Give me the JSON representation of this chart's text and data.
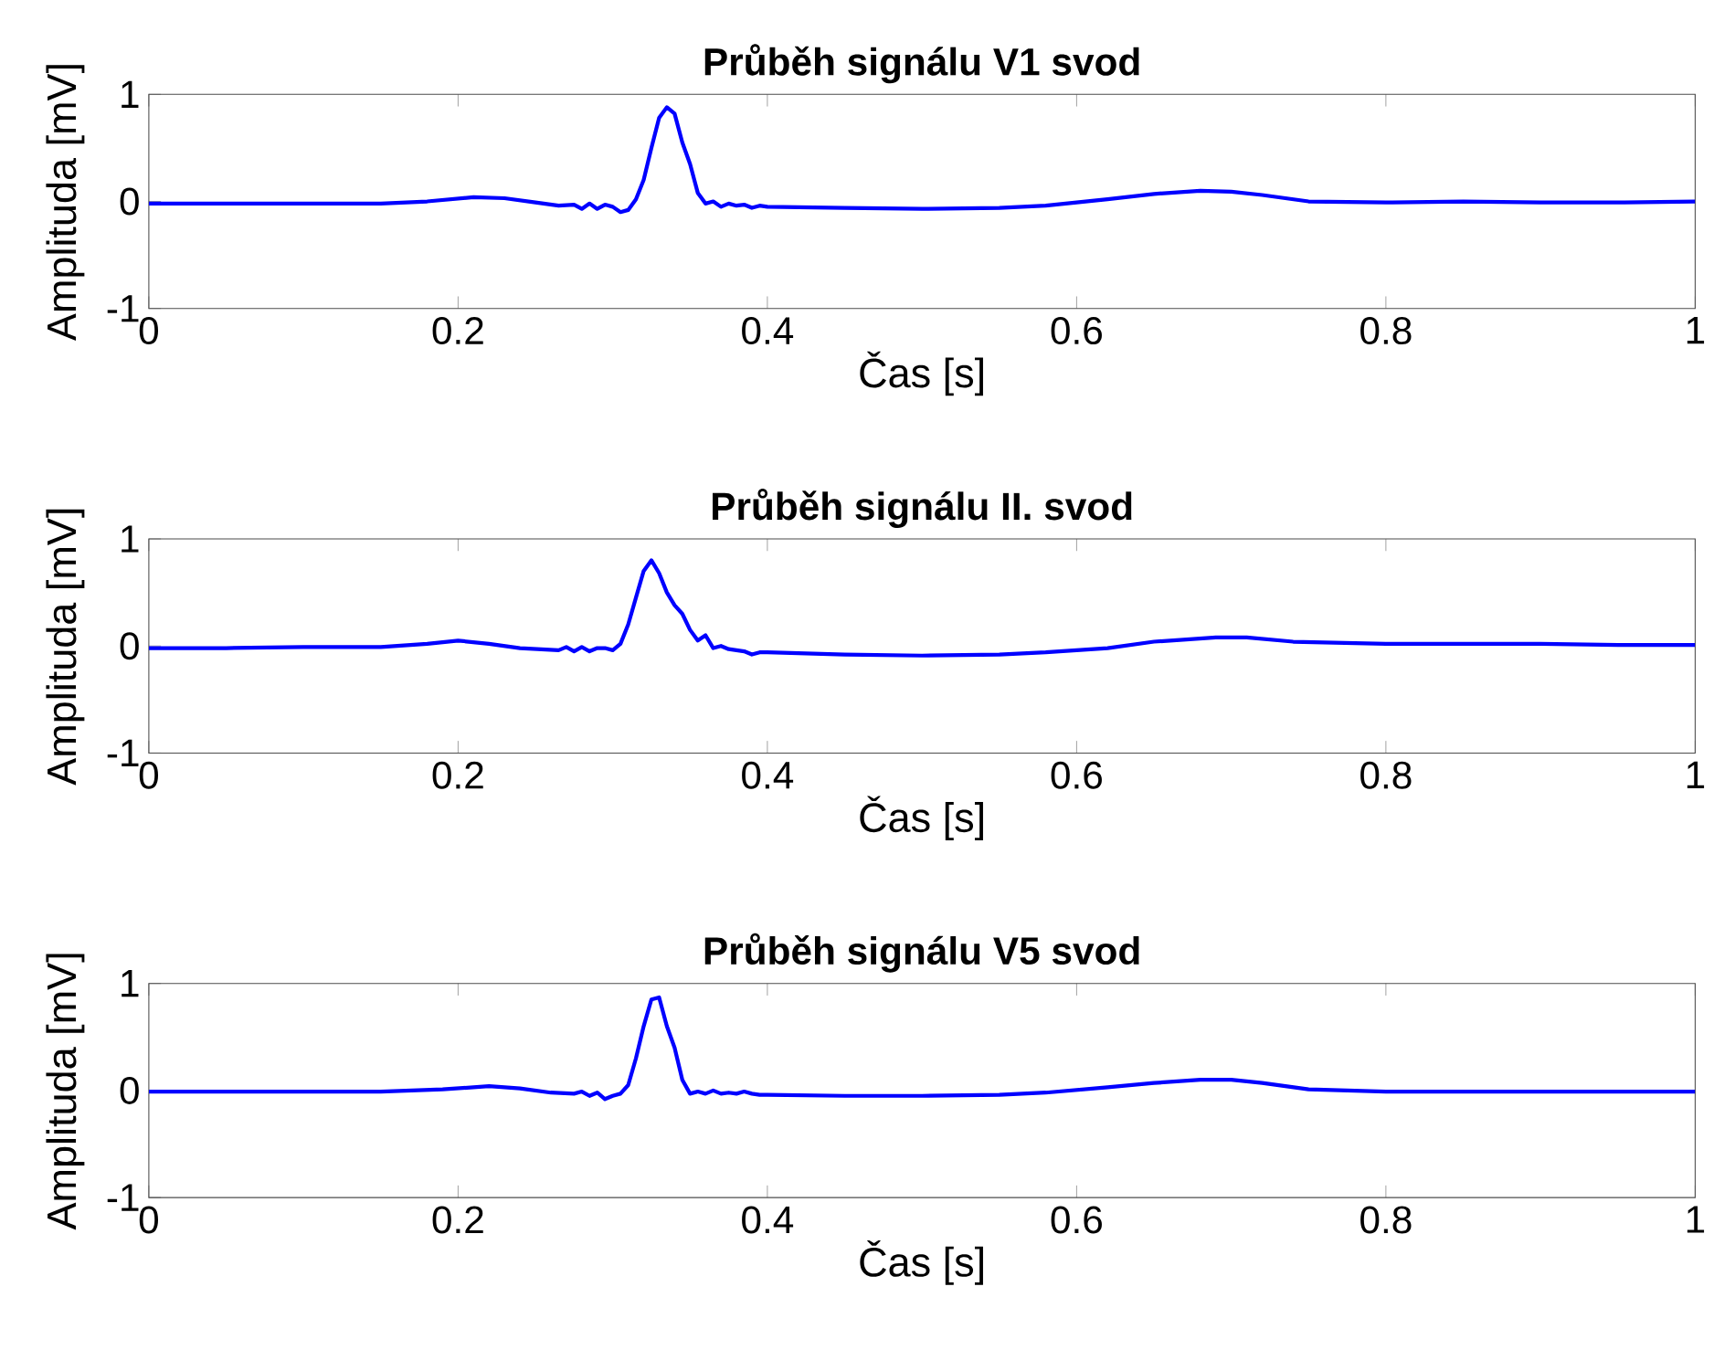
{
  "chart_data": [
    {
      "type": "line",
      "title": "Průběh signálu V1 svod",
      "xlabel": "Čas [s]",
      "ylabel": "Amplituda [mV]",
      "xlim": [
        0,
        1
      ],
      "ylim": [
        -1,
        1
      ],
      "xticks": [
        0,
        0.2,
        0.4,
        0.6,
        0.8,
        1
      ],
      "yticks": [
        -1,
        0,
        1
      ],
      "line_style": "solid",
      "marker": "none",
      "series": [
        {
          "color": "#0000ff",
          "x": [
            0,
            0.05,
            0.1,
            0.15,
            0.18,
            0.21,
            0.23,
            0.25,
            0.265,
            0.275,
            0.28,
            0.285,
            0.29,
            0.295,
            0.3,
            0.305,
            0.31,
            0.315,
            0.32,
            0.325,
            0.33,
            0.335,
            0.34,
            0.345,
            0.35,
            0.355,
            0.36,
            0.365,
            0.37,
            0.375,
            0.38,
            0.385,
            0.39,
            0.395,
            0.4,
            0.45,
            0.5,
            0.55,
            0.58,
            0.62,
            0.65,
            0.68,
            0.7,
            0.72,
            0.75,
            0.8,
            0.85,
            0.9,
            0.95,
            1
          ],
          "values": [
            -0.02,
            -0.02,
            -0.02,
            -0.02,
            0,
            0.04,
            0.03,
            -0.01,
            -0.04,
            -0.03,
            -0.07,
            -0.02,
            -0.07,
            -0.03,
            -0.05,
            -0.1,
            -0.08,
            0.02,
            0.2,
            0.5,
            0.78,
            0.88,
            0.82,
            0.55,
            0.35,
            0.08,
            -0.02,
            0,
            -0.05,
            -0.02,
            -0.04,
            -0.03,
            -0.06,
            -0.04,
            -0.05,
            -0.06,
            -0.07,
            -0.06,
            -0.04,
            0.02,
            0.07,
            0.1,
            0.09,
            0.06,
            0,
            -0.01,
            0,
            -0.01,
            -0.01,
            0
          ]
        }
      ]
    },
    {
      "type": "line",
      "title": "Průběh signálu II. svod",
      "xlabel": "Čas [s]",
      "ylabel": "Amplituda [mV]",
      "xlim": [
        0,
        1
      ],
      "ylim": [
        -1,
        1
      ],
      "xticks": [
        0,
        0.2,
        0.4,
        0.6,
        0.8,
        1
      ],
      "yticks": [
        -1,
        0,
        1
      ],
      "line_style": "solid",
      "marker": "none",
      "series": [
        {
          "color": "#0000ff",
          "x": [
            0,
            0.05,
            0.1,
            0.15,
            0.18,
            0.2,
            0.22,
            0.24,
            0.265,
            0.27,
            0.275,
            0.28,
            0.285,
            0.29,
            0.295,
            0.3,
            0.305,
            0.31,
            0.315,
            0.32,
            0.325,
            0.33,
            0.335,
            0.34,
            0.345,
            0.35,
            0.355,
            0.36,
            0.365,
            0.37,
            0.375,
            0.38,
            0.385,
            0.39,
            0.395,
            0.4,
            0.45,
            0.5,
            0.55,
            0.58,
            0.62,
            0.65,
            0.69,
            0.71,
            0.74,
            0.8,
            0.85,
            0.9,
            0.95,
            1
          ],
          "values": [
            -0.02,
            -0.02,
            -0.01,
            -0.01,
            0.02,
            0.05,
            0.02,
            -0.02,
            -0.04,
            -0.01,
            -0.05,
            -0.01,
            -0.05,
            -0.02,
            -0.02,
            -0.04,
            0.02,
            0.2,
            0.45,
            0.7,
            0.8,
            0.68,
            0.5,
            0.38,
            0.3,
            0.15,
            0.05,
            0.1,
            -0.02,
            0,
            -0.03,
            -0.04,
            -0.05,
            -0.08,
            -0.06,
            -0.06,
            -0.08,
            -0.09,
            -0.08,
            -0.06,
            -0.02,
            0.04,
            0.08,
            0.08,
            0.04,
            0.02,
            0.02,
            0.02,
            0.01,
            0.01
          ]
        }
      ]
    },
    {
      "type": "line",
      "title": "Průběh signálu V5 svod",
      "xlabel": "Čas [s]",
      "ylabel": "Amplituda [mV]",
      "xlim": [
        0,
        1
      ],
      "ylim": [
        -1,
        1
      ],
      "xticks": [
        0,
        0.2,
        0.4,
        0.6,
        0.8,
        1
      ],
      "yticks": [
        -1,
        0,
        1
      ],
      "line_style": "solid",
      "marker": "none",
      "series": [
        {
          "color": "#0000ff",
          "x": [
            0,
            0.05,
            0.1,
            0.15,
            0.19,
            0.22,
            0.24,
            0.26,
            0.275,
            0.28,
            0.285,
            0.29,
            0.295,
            0.3,
            0.305,
            0.31,
            0.315,
            0.32,
            0.325,
            0.33,
            0.335,
            0.34,
            0.345,
            0.35,
            0.355,
            0.36,
            0.365,
            0.37,
            0.375,
            0.38,
            0.385,
            0.39,
            0.395,
            0.4,
            0.45,
            0.5,
            0.55,
            0.58,
            0.62,
            0.65,
            0.68,
            0.7,
            0.72,
            0.75,
            0.8,
            0.85,
            0.9,
            0.95,
            1
          ],
          "values": [
            -0.01,
            -0.01,
            -0.01,
            -0.01,
            0.01,
            0.04,
            0.02,
            -0.02,
            -0.03,
            -0.01,
            -0.05,
            -0.02,
            -0.08,
            -0.05,
            -0.03,
            0.05,
            0.3,
            0.6,
            0.85,
            0.87,
            0.6,
            0.4,
            0.1,
            -0.03,
            -0.01,
            -0.03,
            0,
            -0.03,
            -0.02,
            -0.03,
            -0.01,
            -0.03,
            -0.04,
            -0.04,
            -0.05,
            -0.05,
            -0.04,
            -0.02,
            0.03,
            0.07,
            0.1,
            0.1,
            0.07,
            0.01,
            -0.01,
            -0.01,
            -0.01,
            -0.01,
            -0.01
          ]
        }
      ]
    }
  ]
}
